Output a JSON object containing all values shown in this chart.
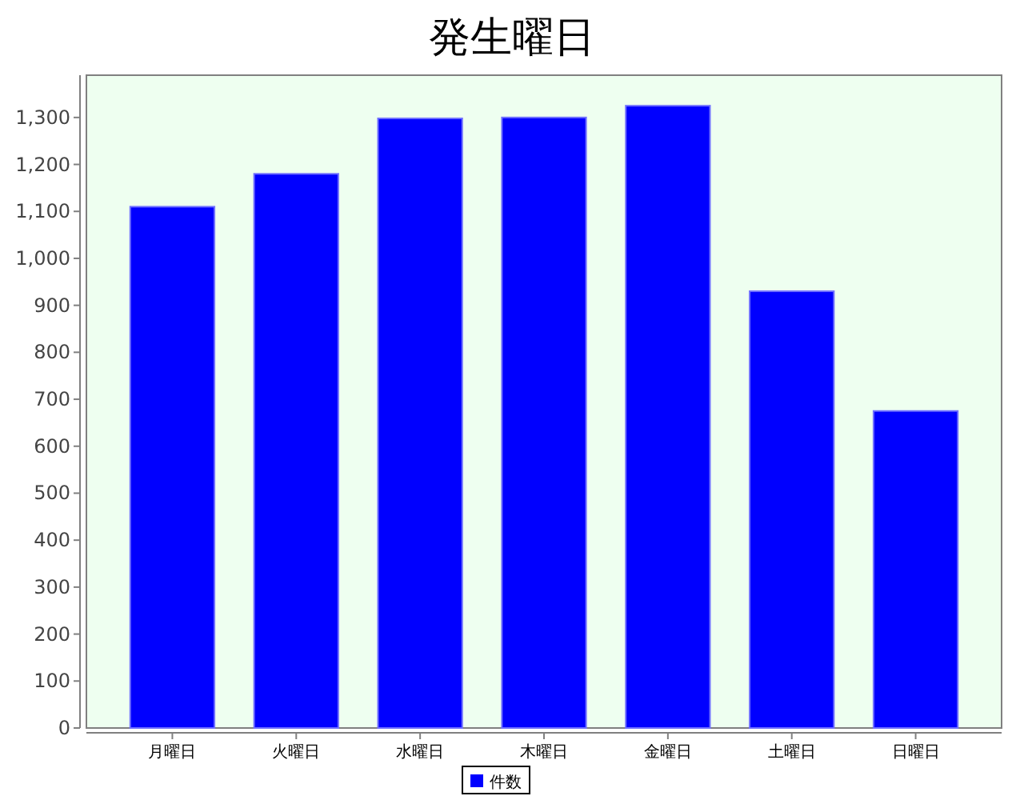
{
  "chart_data": {
    "type": "bar",
    "title": "発生曜日",
    "categories": [
      "月曜日",
      "火曜日",
      "水曜日",
      "木曜日",
      "金曜日",
      "土曜日",
      "日曜日"
    ],
    "series": [
      {
        "name": "件数",
        "color": "#0000ff",
        "values": [
          1110,
          1180,
          1298,
          1300,
          1325,
          930,
          675
        ]
      }
    ],
    "ylim": [
      0,
      1390
    ],
    "yticks": [
      0,
      100,
      200,
      300,
      400,
      500,
      600,
      700,
      800,
      900,
      {
        "value": 1000,
        "label": "1,000"
      },
      {
        "value": 1100,
        "label": "1,100"
      },
      {
        "value": 1200,
        "label": "1,200"
      },
      {
        "value": 1300,
        "label": "1,300"
      }
    ],
    "grid": false,
    "legend": "bottom"
  }
}
